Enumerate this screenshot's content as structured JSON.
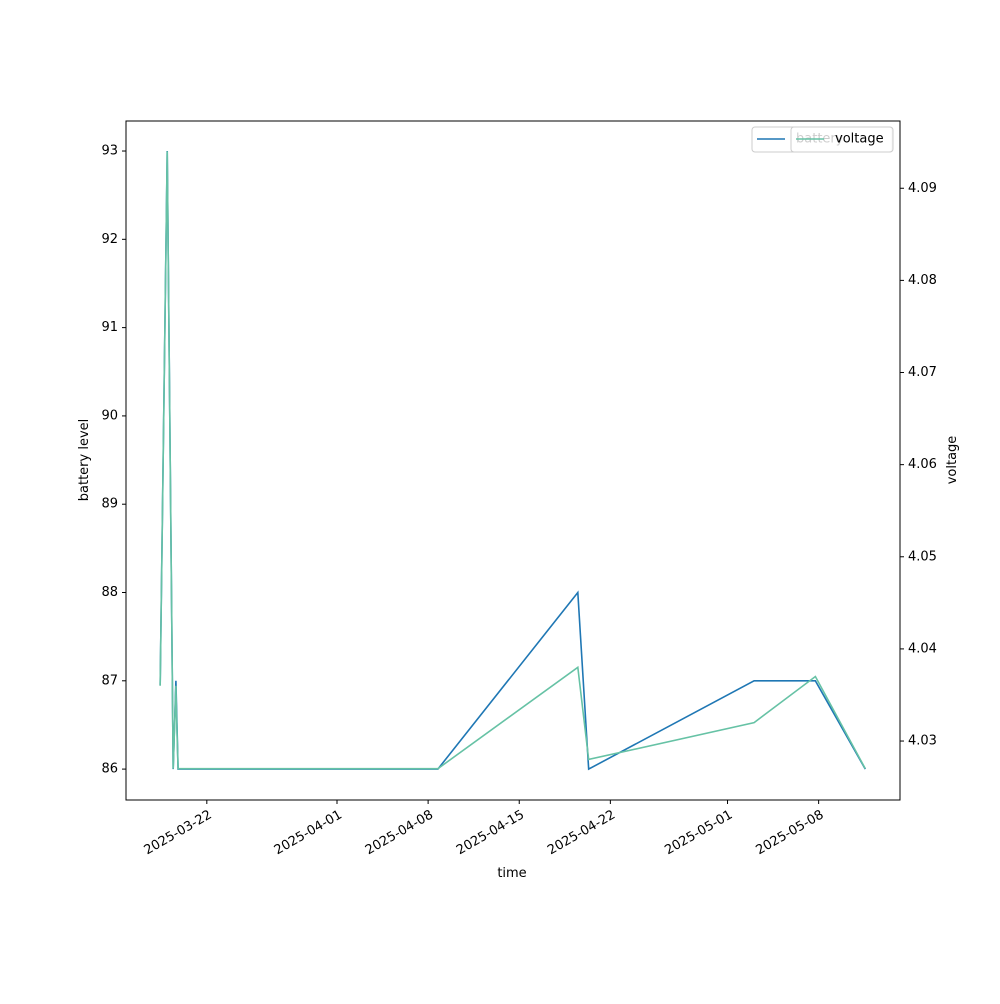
{
  "chart_data": {
    "type": "line",
    "x_label": "time",
    "y_label": "battery level",
    "y2_label": "voltage",
    "x": [
      "2025-03-18T10:00",
      "2025-03-18T23:00",
      "2025-03-19T10:00",
      "2025-03-19T15:00",
      "2025-03-19T16:00",
      "2025-03-19T19:00",
      "2025-04-08T18:00",
      "2025-04-19T12:00",
      "2025-04-20T08:00",
      "2025-05-03T01:00",
      "2025-05-07T18:00",
      "2025-05-11T14:00"
    ],
    "series": [
      {
        "name": "battery",
        "color": "#1f77b4",
        "values": [
          86.95,
          93,
          86,
          87,
          86.75,
          86,
          86,
          88,
          86,
          87,
          87,
          86
        ]
      },
      {
        "name": "voltage",
        "color": "#66c2a5",
        "axis": "y2",
        "values": [
          4.036,
          4.094,
          4.027,
          4.036,
          4.033,
          4.027,
          4.027,
          4.038,
          4.028,
          4.032,
          4.037,
          4.027
        ]
      }
    ],
    "xlim": [
      "2025-03-15T19:00",
      "2025-05-14T06:00"
    ],
    "xticks": [
      "2025-03-22",
      "2025-04-01",
      "2025-04-08",
      "2025-04-15",
      "2025-04-22",
      "2025-05-01",
      "2025-05-08"
    ],
    "ylim": [
      85.65,
      93.34
    ],
    "yticks": [
      86,
      87,
      88,
      89,
      90,
      91,
      92,
      93
    ],
    "y2lim": [
      4.0236,
      4.0973
    ],
    "y2ticks": [
      4.03,
      4.04,
      4.05,
      4.06,
      4.07,
      4.08,
      4.09
    ],
    "legend": "upper right"
  }
}
